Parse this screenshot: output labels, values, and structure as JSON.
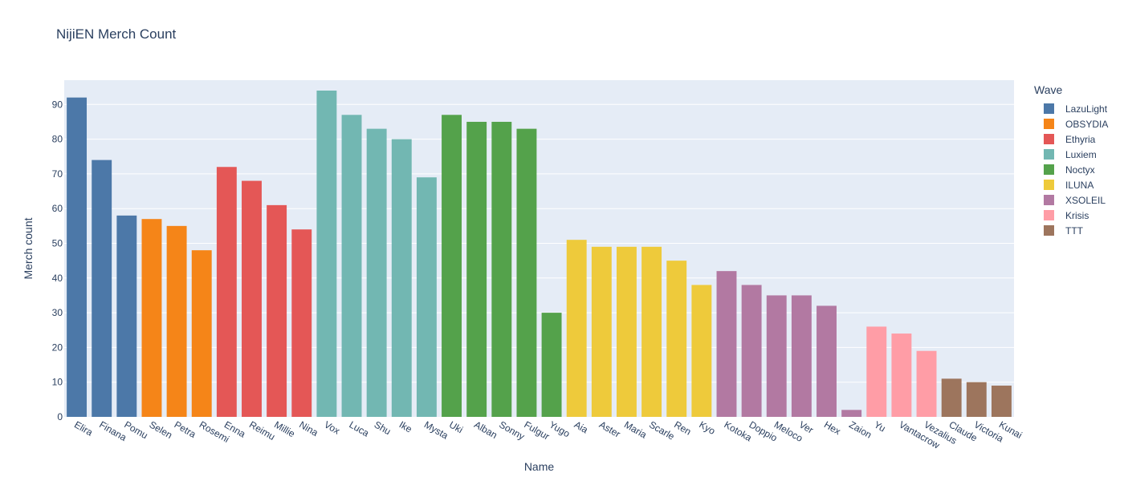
{
  "chart_data": {
    "type": "bar",
    "title": "NijiEN Merch Count",
    "xlabel": "Name",
    "ylabel": "Merch count",
    "ylim": [
      0,
      97
    ],
    "yticks": [
      0,
      10,
      20,
      30,
      40,
      50,
      60,
      70,
      80,
      90
    ],
    "grid": true,
    "legend_title": "Wave",
    "legend_position": "right",
    "series": [
      {
        "name": "LazuLight",
        "color": "#4c78a8",
        "categories": [
          "Elira",
          "Finana",
          "Pomu"
        ],
        "values": [
          92,
          74,
          58
        ]
      },
      {
        "name": "OBSYDIA",
        "color": "#f58518",
        "categories": [
          "Selen",
          "Petra",
          "Rosemi"
        ],
        "values": [
          57,
          55,
          48
        ]
      },
      {
        "name": "Ethyria",
        "color": "#e45756",
        "categories": [
          "Enna",
          "Reimu",
          "Millie",
          "Nina"
        ],
        "values": [
          72,
          68,
          61,
          54
        ]
      },
      {
        "name": "Luxiem",
        "color": "#72b7b2",
        "categories": [
          "Vox",
          "Luca",
          "Shu",
          "Ike",
          "Mysta"
        ],
        "values": [
          94,
          87,
          83,
          80,
          69
        ]
      },
      {
        "name": "Noctyx",
        "color": "#54a24b",
        "categories": [
          "Uki",
          "Alban",
          "Sonny",
          "Fulgur",
          "Yugo"
        ],
        "values": [
          87,
          85,
          85,
          83,
          30
        ]
      },
      {
        "name": "ILUNA",
        "color": "#eeca3b",
        "categories": [
          "Aia",
          "Aster",
          "Maria",
          "Scarle",
          "Ren",
          "Kyo"
        ],
        "values": [
          51,
          49,
          49,
          49,
          45,
          38
        ]
      },
      {
        "name": "XSOLEIL",
        "color": "#b279a2",
        "categories": [
          "Kotoka",
          "Doppio",
          "Meloco",
          "Ver",
          "Hex",
          "Zaion"
        ],
        "values": [
          42,
          38,
          35,
          35,
          32,
          2
        ]
      },
      {
        "name": "Krisis",
        "color": "#ff9da6",
        "categories": [
          "Yu",
          "Vantacrow",
          "Vezalius"
        ],
        "values": [
          26,
          24,
          19
        ]
      },
      {
        "name": "TTT",
        "color": "#9d755d",
        "categories": [
          "Claude",
          "Victoria",
          "Kunai"
        ],
        "values": [
          11,
          10,
          9
        ]
      }
    ]
  }
}
